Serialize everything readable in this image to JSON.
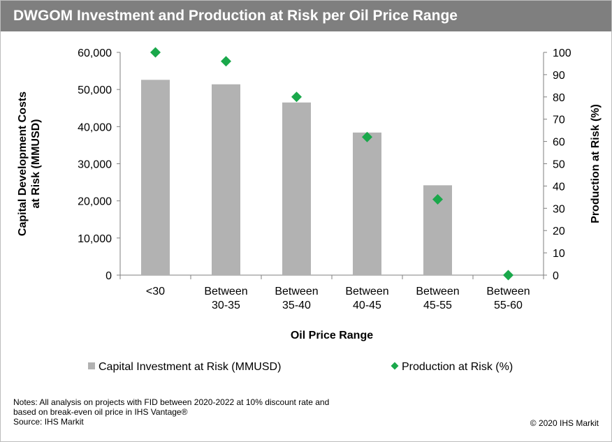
{
  "title": "DWGOM Investment and Production at Risk per Oil Price Range",
  "chart_data": {
    "type": "bar",
    "title": "DWGOM Investment and Production at Risk per Oil Price Range",
    "xlabel": "Oil Price Range",
    "ylabel": [
      "Capital Development Costs",
      "at Risk (MMUSD)"
    ],
    "y2label": "Production at Risk (%)",
    "categories": [
      [
        "<30"
      ],
      [
        "Between",
        "30-35"
      ],
      [
        "Between",
        "35-40"
      ],
      [
        "Between",
        "40-45"
      ],
      [
        "Between",
        "45-55"
      ],
      [
        "Between",
        "55-60"
      ]
    ],
    "ylim": [
      0,
      60000
    ],
    "yticks": [
      "0",
      "10,000",
      "20,000",
      "30,000",
      "40,000",
      "50,000",
      "60,000"
    ],
    "y2lim": [
      0,
      100
    ],
    "y2ticks": [
      "0",
      "10",
      "20",
      "30",
      "40",
      "50",
      "60",
      "70",
      "80",
      "90",
      "100"
    ],
    "series": [
      {
        "name": "Capital Investment at Risk (MMUSD)",
        "kind": "bar",
        "axis": "left",
        "color": "#b2b2b2",
        "values": [
          52600,
          51400,
          46500,
          38400,
          24200,
          0
        ]
      },
      {
        "name": "Production at Risk (%)",
        "kind": "marker",
        "marker": "diamond",
        "axis": "right",
        "color": "#1aa84b",
        "values": [
          100,
          96,
          80,
          62,
          34,
          0
        ]
      }
    ],
    "legend_position": "bottom",
    "grid": false
  },
  "notes": [
    "Notes: All analysis on projects with FID between 2020-2022 at 10% discount rate and",
    "based on break-even oil price in IHS Vantage®",
    "Source: IHS Markit"
  ],
  "copyright": "© 2020 IHS Markit"
}
